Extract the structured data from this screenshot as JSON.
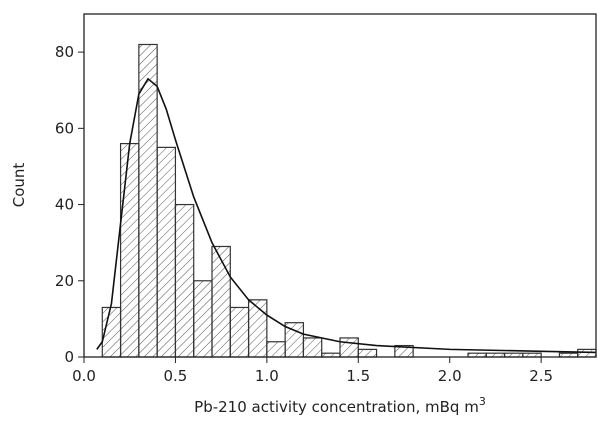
{
  "chart_data": {
    "type": "histogram",
    "x_label": "Pb-210 activity concentration, mBq m",
    "x_label_superscript": "3",
    "y_label": "Count",
    "bins": [
      0.1,
      0.2,
      0.3,
      0.4,
      0.5,
      0.6,
      0.7,
      0.8,
      0.9,
      1.0,
      1.1,
      1.2,
      1.3,
      1.4,
      1.5,
      1.6,
      1.7,
      1.8,
      1.9,
      2.0,
      2.1,
      2.2,
      2.3,
      2.4,
      2.5,
      2.6,
      2.7,
      2.8
    ],
    "counts": [
      13,
      56,
      82,
      55,
      40,
      20,
      29,
      13,
      15,
      4,
      9,
      5,
      1,
      5,
      2,
      0,
      3,
      0,
      0,
      0,
      1,
      1,
      1,
      1,
      0,
      1,
      2
    ],
    "color": "#333333",
    "fit": {
      "x": [
        0.07,
        0.1,
        0.15,
        0.2,
        0.25,
        0.3,
        0.35,
        0.4,
        0.45,
        0.5,
        0.6,
        0.7,
        0.8,
        0.9,
        1.0,
        1.1,
        1.2,
        1.4,
        1.6,
        2.0,
        2.5,
        2.8
      ],
      "y": [
        2,
        4,
        14,
        35,
        56,
        69,
        73,
        71,
        65,
        57,
        42,
        30,
        21,
        15,
        11,
        8,
        6,
        4,
        3,
        2,
        1.5,
        1.2
      ],
      "color": "#111111"
    },
    "xlim": [
      0,
      2.8
    ],
    "ylim": [
      0,
      90
    ],
    "xticks": [
      {
        "value": 0,
        "label": "0.0"
      },
      0.5,
      {
        "value": 1,
        "label": "1.0"
      },
      1.5,
      {
        "value": 2,
        "label": "2.0"
      },
      2.5
    ],
    "yticks": [
      0,
      20,
      40,
      60,
      80
    ]
  }
}
